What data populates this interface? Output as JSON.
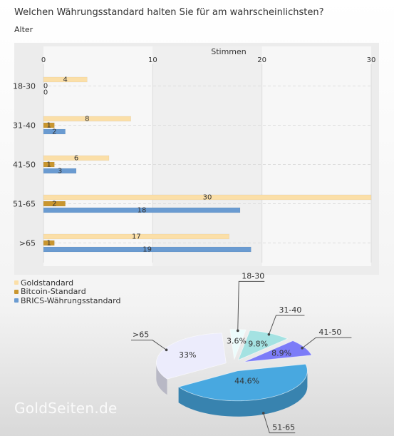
{
  "question": "Welchen Währungsstandard halten Sie für am wahrscheinlichsten?",
  "subtitle": "Alter",
  "watermark": "GoldSeiten.de",
  "colors": {
    "Goldstandard": "#fbdfa8",
    "Bitcoin-Standard": "#c9962f",
    "BRICS-Währungsstandard": "#6a9bd1"
  },
  "chart_data": [
    {
      "type": "bar",
      "orientation": "horizontal",
      "categories": [
        "18-30",
        "31-40",
        "41-50",
        "51-65",
        ">65"
      ],
      "series": [
        {
          "name": "Goldstandard",
          "values": [
            4,
            8,
            6,
            30,
            17
          ]
        },
        {
          "name": "Bitcoin-Standard",
          "values": [
            0,
            1,
            1,
            2,
            1
          ]
        },
        {
          "name": "BRICS-Währungsstandard",
          "values": [
            0,
            2,
            3,
            18,
            19
          ]
        }
      ],
      "xlabel": "Stimmen",
      "ylabel": "Alter",
      "xlim": [
        0,
        30
      ],
      "xticks": [
        0,
        10,
        20,
        30
      ],
      "grid": true,
      "legend": "bottom-left"
    },
    {
      "type": "pie",
      "categories": [
        "18-30",
        "31-40",
        "41-50",
        "51-65",
        ">65"
      ],
      "values": [
        3.6,
        9.8,
        8.9,
        44.6,
        33
      ],
      "labels": [
        "3.6%",
        "9.8%",
        "8.9%",
        "44.6%",
        "33%"
      ],
      "colors": [
        "#ecfcfc",
        "#a4e2e2",
        "#7c7cf8",
        "#48a8e0",
        "#ececfc"
      ]
    }
  ]
}
